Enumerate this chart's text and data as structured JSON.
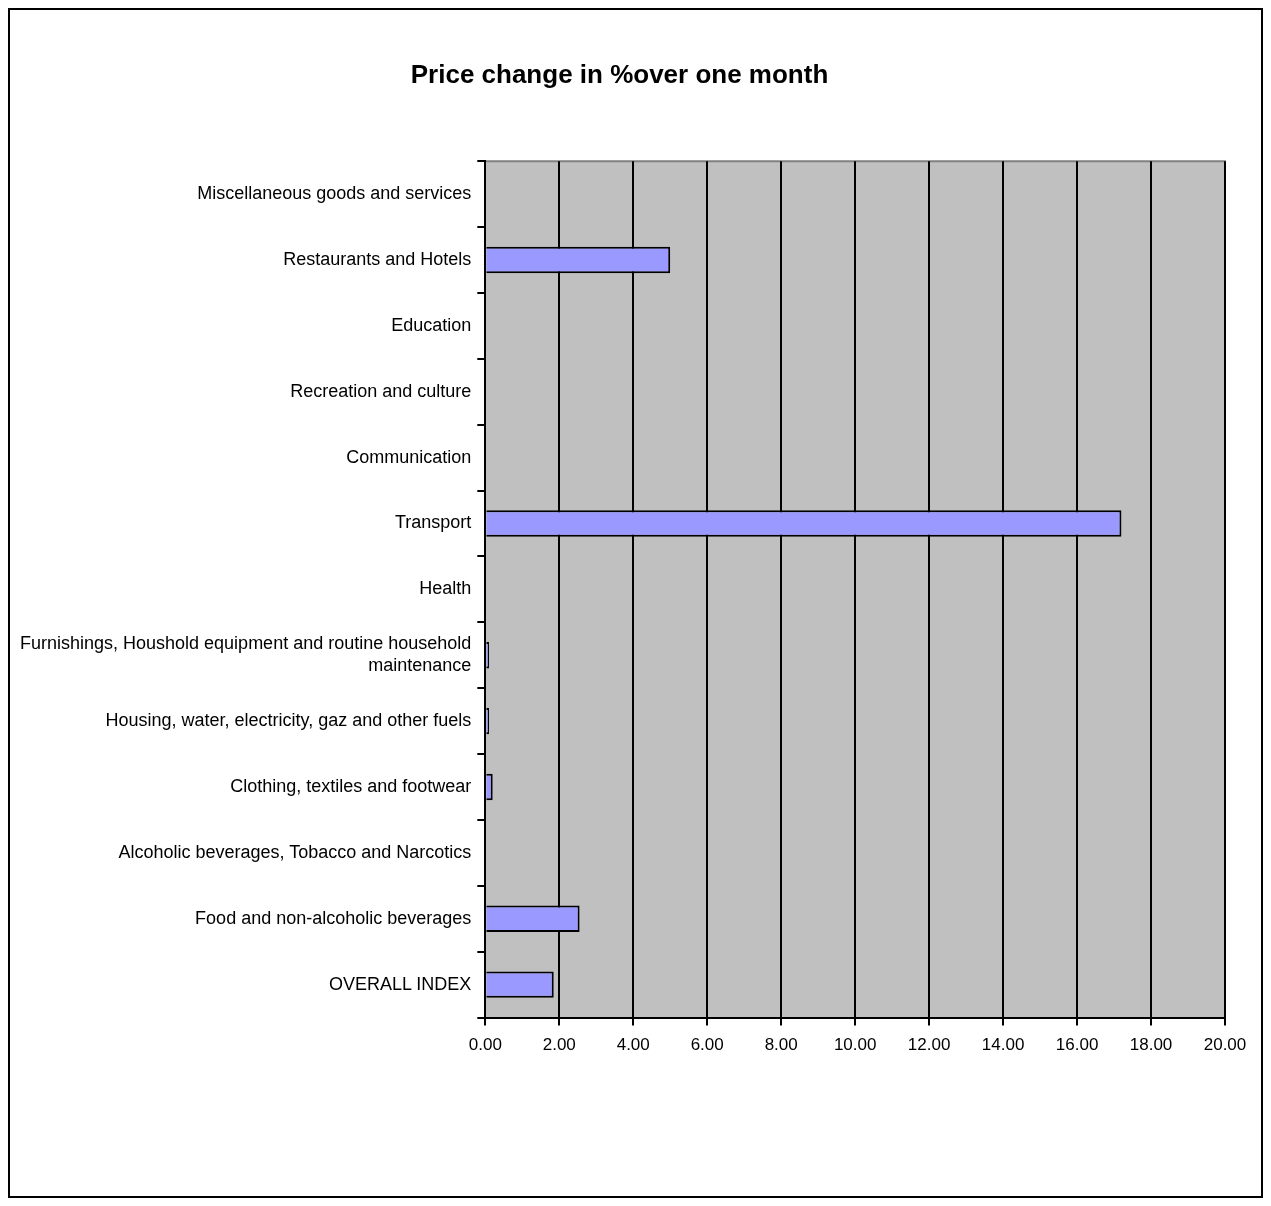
{
  "chart_data": {
    "type": "bar",
    "orientation": "horizontal",
    "title": "Price change in %over one month",
    "categories": [
      "Miscellaneous goods and services",
      "Restaurants and Hotels",
      "Education",
      "Recreation and culture",
      "Communication",
      "Transport",
      "Health",
      "Furnishings, Houshold equipment and routine household maintenance",
      "Housing, water, electricity, gaz and other fuels",
      "Clothing, textiles and footwear",
      "Alcoholic beverages, Tobacco and Narcotics",
      "Food and non-alcoholic beverages",
      "OVERALL INDEX"
    ],
    "values": [
      0,
      5.0,
      0,
      0,
      0,
      17.2,
      0,
      0.1,
      0.1,
      0.2,
      0,
      2.55,
      1.85
    ],
    "color": "#9999ff",
    "xlim": [
      0,
      20
    ],
    "xticks": [
      {
        "value": 0,
        "label": "0.00"
      },
      {
        "value": 2,
        "label": "2.00"
      },
      {
        "value": 4,
        "label": "4.00"
      },
      {
        "value": 6,
        "label": "6.00"
      },
      {
        "value": 8,
        "label": "8.00"
      },
      {
        "value": 10,
        "label": "10.00"
      },
      {
        "value": 12,
        "label": "12.00"
      },
      {
        "value": 14,
        "label": "14.00"
      },
      {
        "value": 16,
        "label": "16.00"
      },
      {
        "value": 18,
        "label": "18.00"
      },
      {
        "value": 20,
        "label": "20.00"
      }
    ],
    "grid": "x",
    "legend": false
  }
}
